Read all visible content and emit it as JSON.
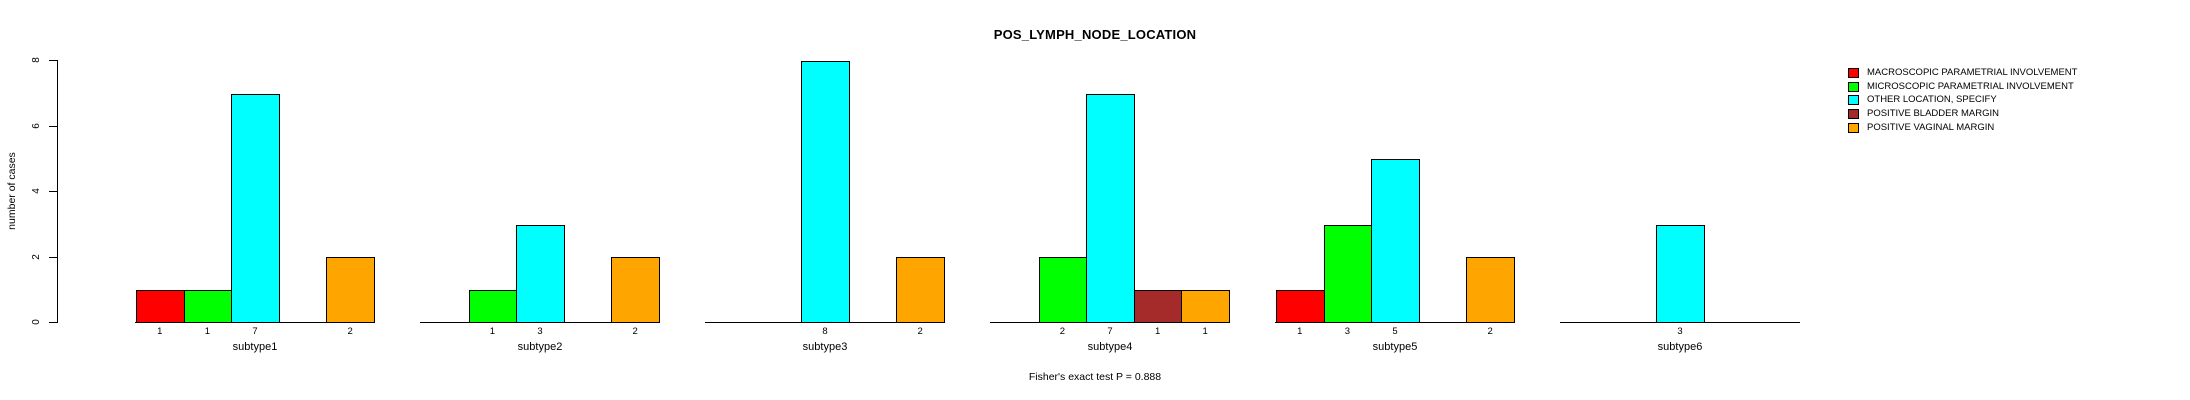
{
  "chart_data": {
    "type": "bar",
    "title": "POS_LYMPH_NODE_LOCATION",
    "ylabel": "number of cases",
    "xlabel": "",
    "ylim": [
      0,
      8
    ],
    "yticks": [
      0,
      2,
      4,
      6,
      8
    ],
    "grid": false,
    "legend_position": "right",
    "categories": [
      "subtype1",
      "subtype2",
      "subtype3",
      "subtype4",
      "subtype5",
      "subtype6"
    ],
    "series": [
      {
        "name": "MACROSCOPIC PARAMETRIAL INVOLVEMENT",
        "color": "#FF0000",
        "values": [
          1,
          0,
          0,
          0,
          1,
          0
        ]
      },
      {
        "name": "MICROSCOPIC PARAMETRIAL INVOLVEMENT",
        "color": "#00FF00",
        "values": [
          1,
          1,
          0,
          2,
          3,
          0
        ]
      },
      {
        "name": "OTHER LOCATION, SPECIFY",
        "color": "#00FFFF",
        "values": [
          7,
          3,
          8,
          7,
          5,
          3
        ]
      },
      {
        "name": "POSITIVE BLADDER MARGIN",
        "color": "#A52A2A",
        "values": [
          0,
          0,
          0,
          1,
          0,
          0
        ]
      },
      {
        "name": "POSITIVE VAGINAL MARGIN",
        "color": "#FFA500",
        "values": [
          2,
          2,
          2,
          1,
          2,
          0
        ]
      }
    ],
    "bar_labels_note": "each nonzero bar is labeled with its count below the axis",
    "caption": "Fisher's exact test P = 0.888",
    "axis_color": "#000000",
    "background_color": "#FFFFFF"
  }
}
